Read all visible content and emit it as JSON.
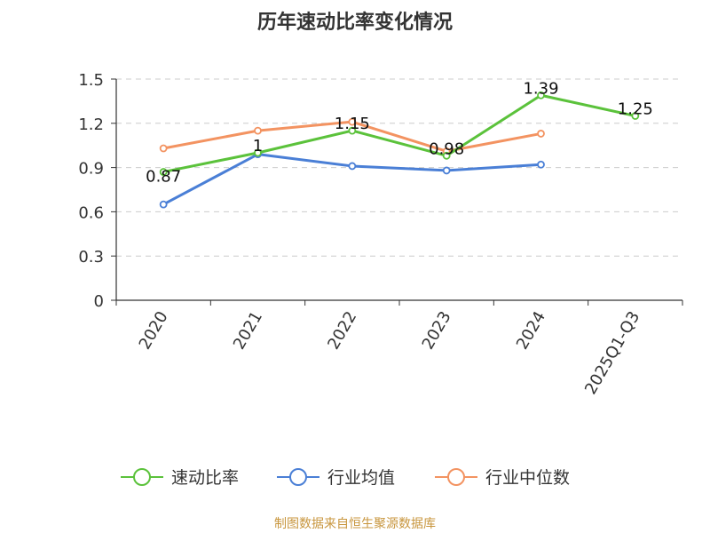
{
  "chart_data": {
    "type": "line",
    "title": "历年速动比率变化情况",
    "categories": [
      "2020",
      "2021",
      "2022",
      "2023",
      "2024",
      "2025Q1-Q3"
    ],
    "ylim": [
      0,
      1.5
    ],
    "yticks": [
      "0",
      "0.3",
      "0.6",
      "0.9",
      "1.2",
      "1.5"
    ],
    "grid": true,
    "legend_position": "bottom",
    "series": [
      {
        "name": "速动比率",
        "color": "#5bc23b",
        "values": [
          0.87,
          1.0,
          1.15,
          0.98,
          1.39,
          1.25
        ],
        "labels": [
          "0.87",
          "1",
          "1.15",
          "0.98",
          "1.39",
          "1.25"
        ]
      },
      {
        "name": "行业均值",
        "color": "#4a7fd6",
        "values": [
          0.65,
          0.99,
          0.91,
          0.88,
          0.92,
          null
        ]
      },
      {
        "name": "行业中位数",
        "color": "#f39361",
        "values": [
          1.03,
          1.15,
          1.21,
          1.01,
          1.13,
          null
        ]
      }
    ]
  },
  "source_text": "制图数据来自恒生聚源数据库",
  "source_color": "#c8963e"
}
